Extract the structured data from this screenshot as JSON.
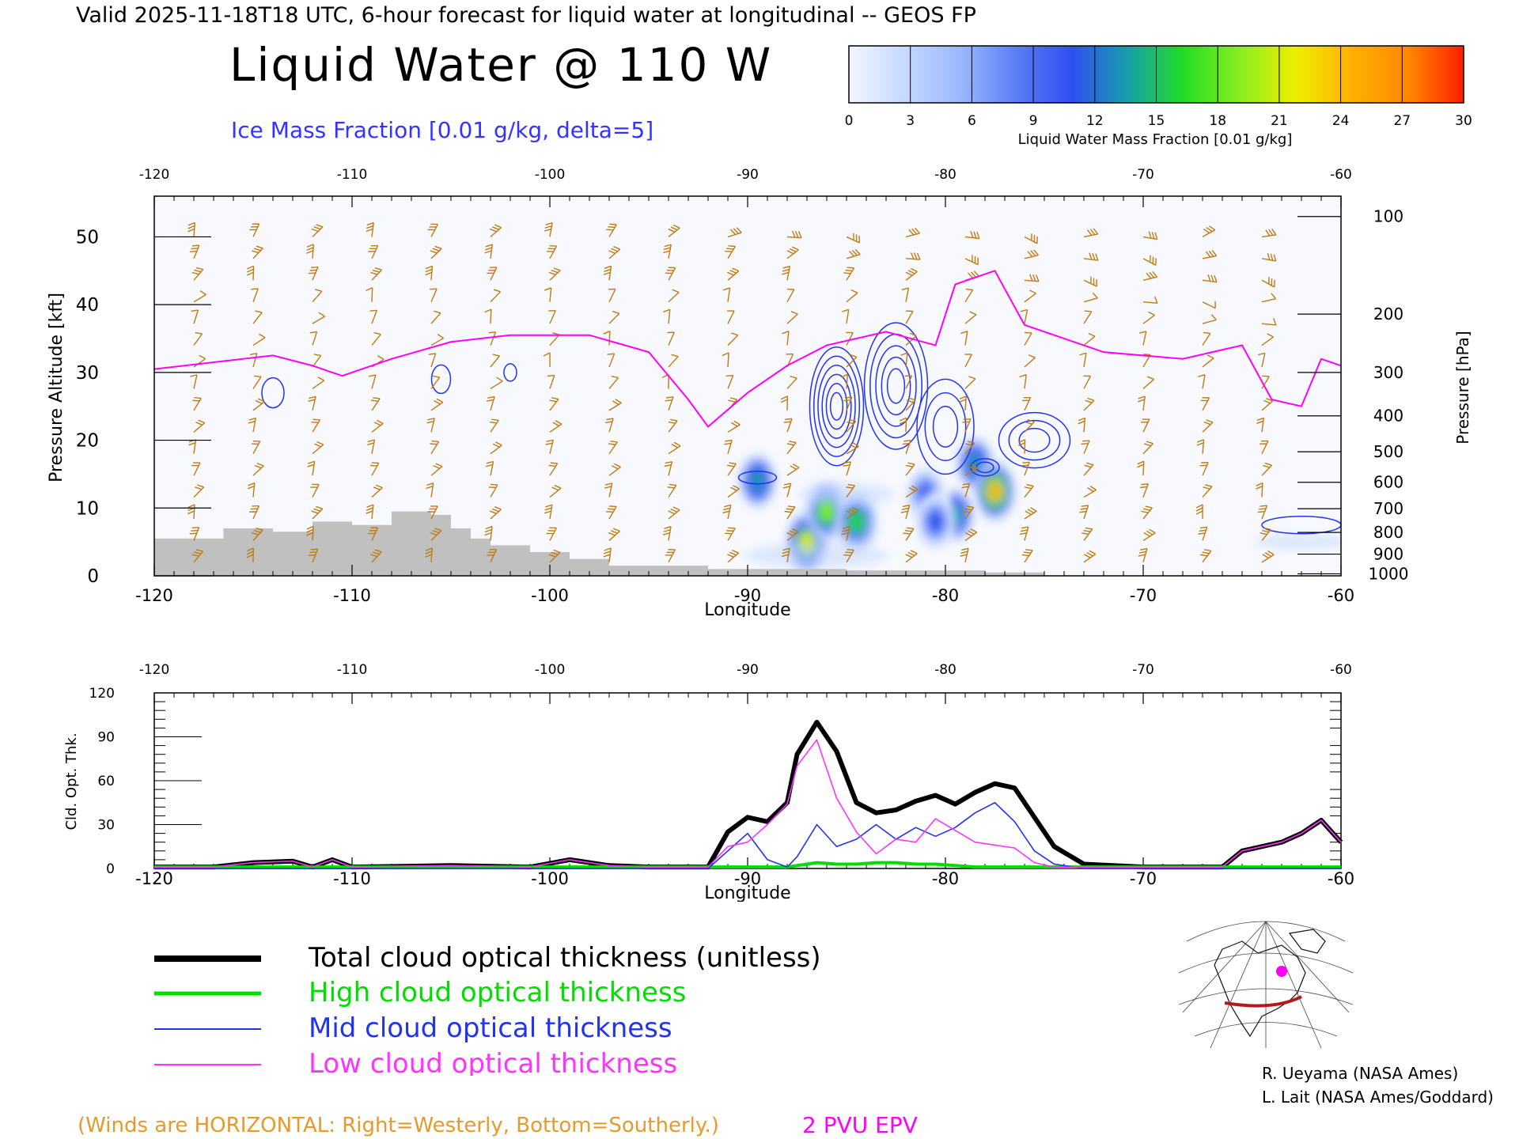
{
  "header": {
    "valid_text": "Valid 2025-11-18T18 UTC, 6-hour forecast for liquid water at longitudinal -- GEOS FP",
    "main_title": "Liquid Water @ 110 W",
    "ice_label": "Ice Mass Fraction [0.01 g/kg, delta=5]"
  },
  "colorbar": {
    "ticks": [
      "0",
      "3",
      "6",
      "9",
      "12",
      "15",
      "18",
      "21",
      "24",
      "27",
      "30"
    ],
    "title": "Liquid Water Mass Fraction [0.01 g/kg]",
    "colors": [
      "#f2f6ff",
      "#c6d8ff",
      "#99b8ff",
      "#5a7cf5",
      "#2f50f0",
      "#18a0a8",
      "#22dd22",
      "#88ee22",
      "#eeee00",
      "#ffb000",
      "#ff8800",
      "#ff2000"
    ]
  },
  "legend": {
    "total": "Total cloud optical thickness (unitless)",
    "high": "High cloud optical thickness",
    "mid": "Mid cloud optical thickness",
    "low": "Low cloud optical thickness",
    "colors": {
      "total": "#000000",
      "high": "#00dd00",
      "mid": "#2233ee",
      "low": "#ff33ff"
    }
  },
  "credits": {
    "line1": "R. Ueyama (NASA Ames)",
    "line2": "L. Lait (NASA Ames/Goddard)"
  },
  "footer": {
    "winds": "(Winds are HORIZONTAL: Right=Westerly, Bottom=Southerly.)",
    "pvu": "2 PVU EPV"
  },
  "colors": {
    "wind_barbs": "#c07a10",
    "epv_contour": "#ff00ff",
    "ice_contour": "#2233ee",
    "terrain": "#c0c0c0"
  },
  "chart_data": [
    {
      "type": "heatmap",
      "xlabel": "Longitude",
      "ylabel": "Pressure Altitude [kft]",
      "y2label": "Pressure [hPa]",
      "xlim": [
        -120,
        -60
      ],
      "ylim": [
        0,
        56
      ],
      "x_ticks": [
        -120,
        -110,
        -100,
        -90,
        -80,
        -70,
        -60
      ],
      "x_tick_labels": [
        "-120",
        "-110",
        "-100",
        "-90",
        "-80",
        "-70",
        "-60"
      ],
      "y_ticks": [
        0,
        10,
        20,
        30,
        40,
        50
      ],
      "y_tick_labels": [
        "0",
        "10",
        "20",
        "30",
        "40",
        "50"
      ],
      "pressure_ticks": [
        {
          "hpa": "100",
          "kft": 53
        },
        {
          "hpa": "200",
          "kft": 38.6
        },
        {
          "hpa": "300",
          "kft": 30
        },
        {
          "hpa": "400",
          "kft": 23.6
        },
        {
          "hpa": "500",
          "kft": 18.3
        },
        {
          "hpa": "600",
          "kft": 13.8
        },
        {
          "hpa": "700",
          "kft": 9.9
        },
        {
          "hpa": "800",
          "kft": 6.4
        },
        {
          "hpa": "900",
          "kft": 3.2
        },
        {
          "hpa": "1000",
          "kft": 0.3
        }
      ],
      "liquid_water_blobs": [
        {
          "lon": -87.0,
          "kft": 5.0,
          "peak": 24
        },
        {
          "lon": -86.0,
          "kft": 9.5,
          "peak": 22
        },
        {
          "lon": -84.5,
          "kft": 8.0,
          "peak": 19
        },
        {
          "lon": -89.5,
          "kft": 14.0,
          "peak": 16
        },
        {
          "lon": -78.5,
          "kft": 16.5,
          "peak": 17
        },
        {
          "lon": -77.5,
          "kft": 12.5,
          "peak": 28
        },
        {
          "lon": -79.5,
          "kft": 9.0,
          "peak": 16
        },
        {
          "lon": -81.0,
          "kft": 12.0,
          "peak": 14
        },
        {
          "lon": -80.5,
          "kft": 8.0,
          "peak": 12
        }
      ],
      "terrain_kft": [
        {
          "lon": -120.0,
          "kft": 5.5
        },
        {
          "lon": -118.0,
          "kft": 5.5
        },
        {
          "lon": -116.5,
          "kft": 7.0
        },
        {
          "lon": -114.0,
          "kft": 6.5
        },
        {
          "lon": -112.0,
          "kft": 8.0
        },
        {
          "lon": -110.0,
          "kft": 7.5
        },
        {
          "lon": -108.0,
          "kft": 9.5
        },
        {
          "lon": -106.0,
          "kft": 9.0
        },
        {
          "lon": -105.0,
          "kft": 7.0
        },
        {
          "lon": -104.0,
          "kft": 5.5
        },
        {
          "lon": -103.0,
          "kft": 4.5
        },
        {
          "lon": -101.0,
          "kft": 3.5
        },
        {
          "lon": -99.0,
          "kft": 2.5
        },
        {
          "lon": -97.0,
          "kft": 1.5
        },
        {
          "lon": -92.0,
          "kft": 1.0
        },
        {
          "lon": -85.0,
          "kft": 0.8
        },
        {
          "lon": -78.0,
          "kft": 0.5
        },
        {
          "lon": -75.0,
          "kft": 0.0
        }
      ],
      "epv_2pvu_kft": [
        {
          "lon": -120.0,
          "kft": 30.5
        },
        {
          "lon": -117.0,
          "kft": 31.5
        },
        {
          "lon": -114.0,
          "kft": 32.5
        },
        {
          "lon": -112.0,
          "kft": 31.0
        },
        {
          "lon": -110.5,
          "kft": 29.5
        },
        {
          "lon": -108.0,
          "kft": 32.0
        },
        {
          "lon": -105.0,
          "kft": 34.5
        },
        {
          "lon": -102.0,
          "kft": 35.5
        },
        {
          "lon": -98.0,
          "kft": 35.5
        },
        {
          "lon": -95.0,
          "kft": 33.0
        },
        {
          "lon": -93.0,
          "kft": 26.0
        },
        {
          "lon": -92.0,
          "kft": 22.0
        },
        {
          "lon": -90.0,
          "kft": 27.0
        },
        {
          "lon": -88.0,
          "kft": 31.0
        },
        {
          "lon": -86.0,
          "kft": 34.0
        },
        {
          "lon": -83.0,
          "kft": 36.0
        },
        {
          "lon": -80.5,
          "kft": 34.0
        },
        {
          "lon": -79.5,
          "kft": 43.0
        },
        {
          "lon": -77.5,
          "kft": 45.0
        },
        {
          "lon": -76.0,
          "kft": 37.0
        },
        {
          "lon": -72.0,
          "kft": 33.0
        },
        {
          "lon": -68.0,
          "kft": 32.0
        },
        {
          "lon": -65.0,
          "kft": 34.0
        },
        {
          "lon": -63.5,
          "kft": 26.0
        },
        {
          "lon": -62.0,
          "kft": 25.0
        },
        {
          "lon": -61.0,
          "kft": 32.0
        },
        {
          "lon": -60.0,
          "kft": 31.0
        }
      ]
    },
    {
      "type": "line",
      "xlabel": "Longitude",
      "ylabel": "Cld. Opt. Thk.",
      "xlim": [
        -120,
        -60
      ],
      "ylim": [
        0,
        120
      ],
      "x_ticks": [
        -120,
        -110,
        -100,
        -90,
        -80,
        -70,
        -60
      ],
      "x_tick_labels": [
        "-120",
        "-110",
        "-100",
        "-90",
        "-80",
        "-70",
        "-60"
      ],
      "y_ticks": [
        0,
        30,
        60,
        90,
        120
      ],
      "y_tick_labels": [
        "0",
        "30",
        "60",
        "90",
        "120"
      ],
      "x": [
        -120,
        -117,
        -115,
        -113,
        -112,
        -111,
        -110,
        -105,
        -101,
        -99,
        -97,
        -95,
        -92,
        -91,
        -90,
        -89,
        -88,
        -87.5,
        -86.5,
        -85.5,
        -84.5,
        -83.5,
        -82.5,
        -81.5,
        -80.5,
        -79.5,
        -78.5,
        -77.5,
        -76.5,
        -75.5,
        -74.5,
        -73,
        -70,
        -66,
        -65,
        -63,
        -62,
        -61,
        -60
      ],
      "series": [
        {
          "name": "Total cloud optical thickness (unitless)",
          "values": [
            1,
            1,
            4,
            5,
            1,
            6,
            1,
            2,
            1,
            6,
            2,
            1,
            1,
            25,
            35,
            32,
            45,
            78,
            100,
            80,
            45,
            38,
            40,
            46,
            50,
            44,
            52,
            58,
            55,
            35,
            15,
            3,
            1,
            1,
            12,
            18,
            24,
            33,
            18
          ]
        },
        {
          "name": "High cloud optical thickness",
          "values": [
            1,
            1,
            1,
            1,
            1,
            1,
            1,
            1,
            1,
            1,
            1,
            1,
            1,
            1,
            1,
            1,
            1,
            2,
            4,
            3,
            3,
            4,
            4,
            3,
            3,
            2,
            1,
            1,
            1,
            1,
            1,
            1,
            1,
            1,
            1,
            1,
            1,
            1,
            1
          ]
        },
        {
          "name": "Mid cloud optical thickness",
          "values": [
            0,
            0,
            0,
            0,
            0,
            0,
            0,
            0,
            0,
            0,
            0,
            0,
            0,
            12,
            24,
            6,
            1,
            8,
            30,
            15,
            20,
            30,
            20,
            28,
            22,
            28,
            38,
            45,
            32,
            12,
            3,
            0,
            0,
            0,
            0,
            0,
            0,
            0,
            0
          ]
        },
        {
          "name": "Low cloud optical thickness",
          "values": [
            1,
            1,
            4,
            5,
            1,
            6,
            1,
            2,
            1,
            6,
            2,
            1,
            1,
            15,
            18,
            30,
            44,
            70,
            88,
            48,
            25,
            10,
            20,
            18,
            34,
            26,
            18,
            16,
            14,
            4,
            1,
            1,
            1,
            1,
            12,
            18,
            24,
            33,
            18
          ]
        }
      ]
    }
  ]
}
